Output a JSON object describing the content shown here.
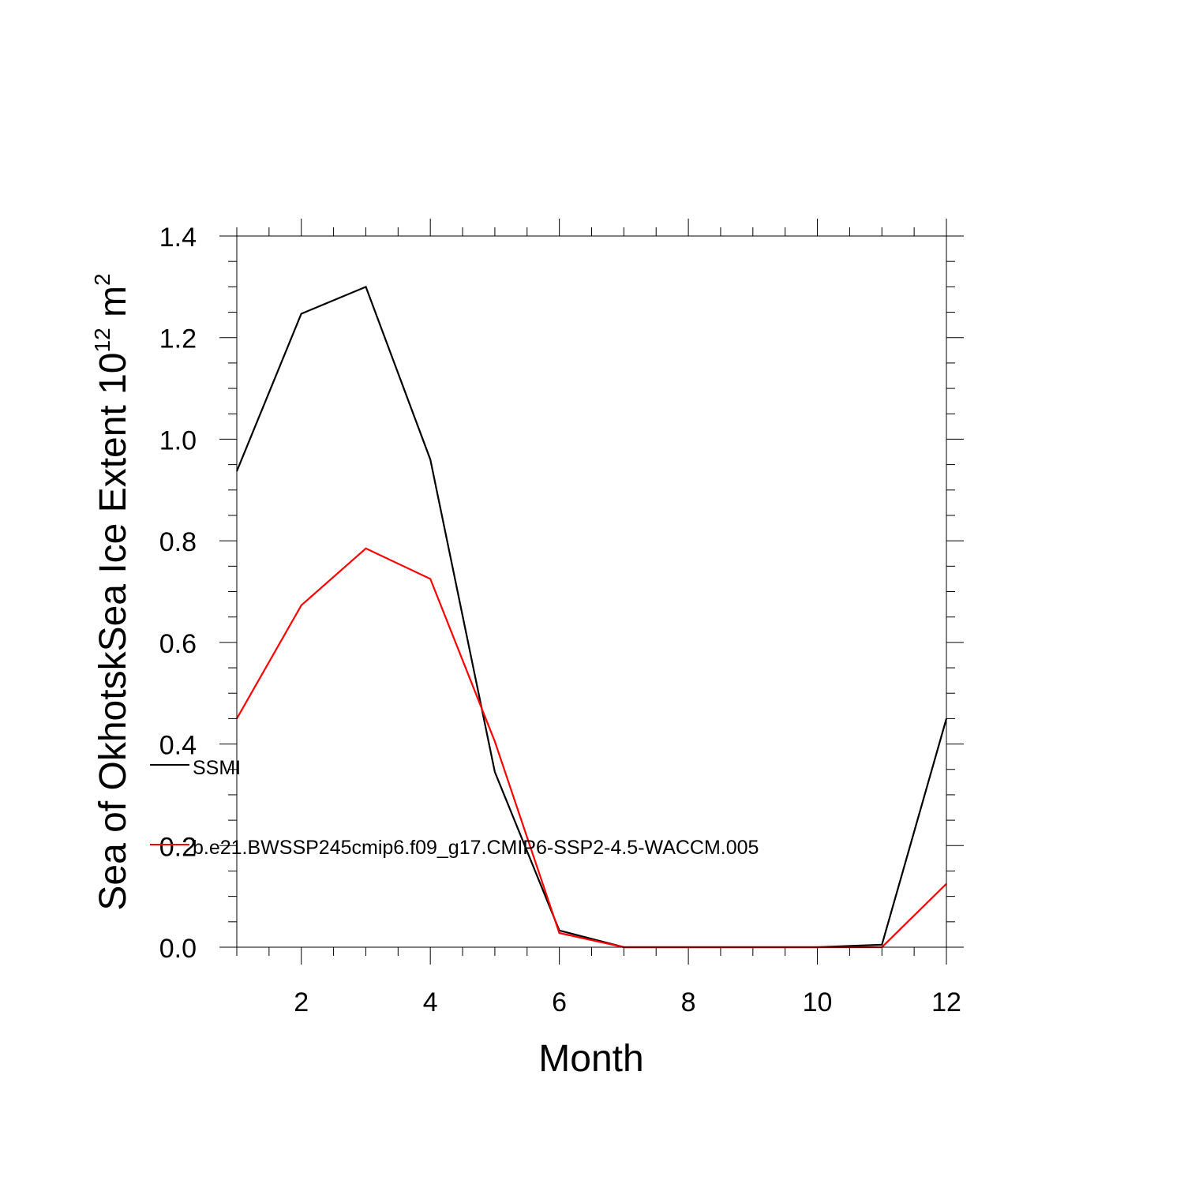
{
  "chart_data": {
    "type": "line",
    "title": "",
    "xlabel": "Month",
    "ylabel": "Sea of OkhotskSea Ice Extent 10",
    "ylabel_exponent": "12",
    "ylabel_unit": " m",
    "ylabel_unit_exponent": "2",
    "xlim": [
      1,
      12
    ],
    "ylim": [
      0,
      1.4
    ],
    "x_ticks": [
      2,
      4,
      6,
      8,
      10,
      12
    ],
    "x_tick_labels": [
      "2",
      "4",
      "6",
      "8",
      "10",
      "12"
    ],
    "y_ticks": [
      0,
      0.2,
      0.4,
      0.6,
      0.8,
      1.0,
      1.2,
      1.4
    ],
    "y_tick_labels": [
      "0.0",
      "0.2",
      "0.4",
      "0.6",
      "0.8",
      "1.0",
      "1.2",
      "1.4"
    ],
    "grid": false,
    "legend_placement": "left, overlapping plot",
    "x": [
      1,
      2,
      3,
      4,
      5,
      6,
      7,
      8,
      9,
      10,
      11,
      12
    ],
    "series": [
      {
        "name": "SSMI",
        "color": "#000000",
        "values": [
          0.937,
          1.247,
          1.3,
          0.96,
          0.345,
          0.033,
          0.0,
          0.0,
          0.0,
          0.0,
          0.005,
          0.45
        ]
      },
      {
        "name": "b.e21.BWSSP245cmip6.f09_g17.CMIP6-SSP2-4.5-WACCM.005",
        "color": "#ff0000",
        "values": [
          0.45,
          0.673,
          0.785,
          0.725,
          0.405,
          0.028,
          0.0,
          0.0,
          0.0,
          0.0,
          0.0,
          0.125
        ]
      }
    ]
  }
}
